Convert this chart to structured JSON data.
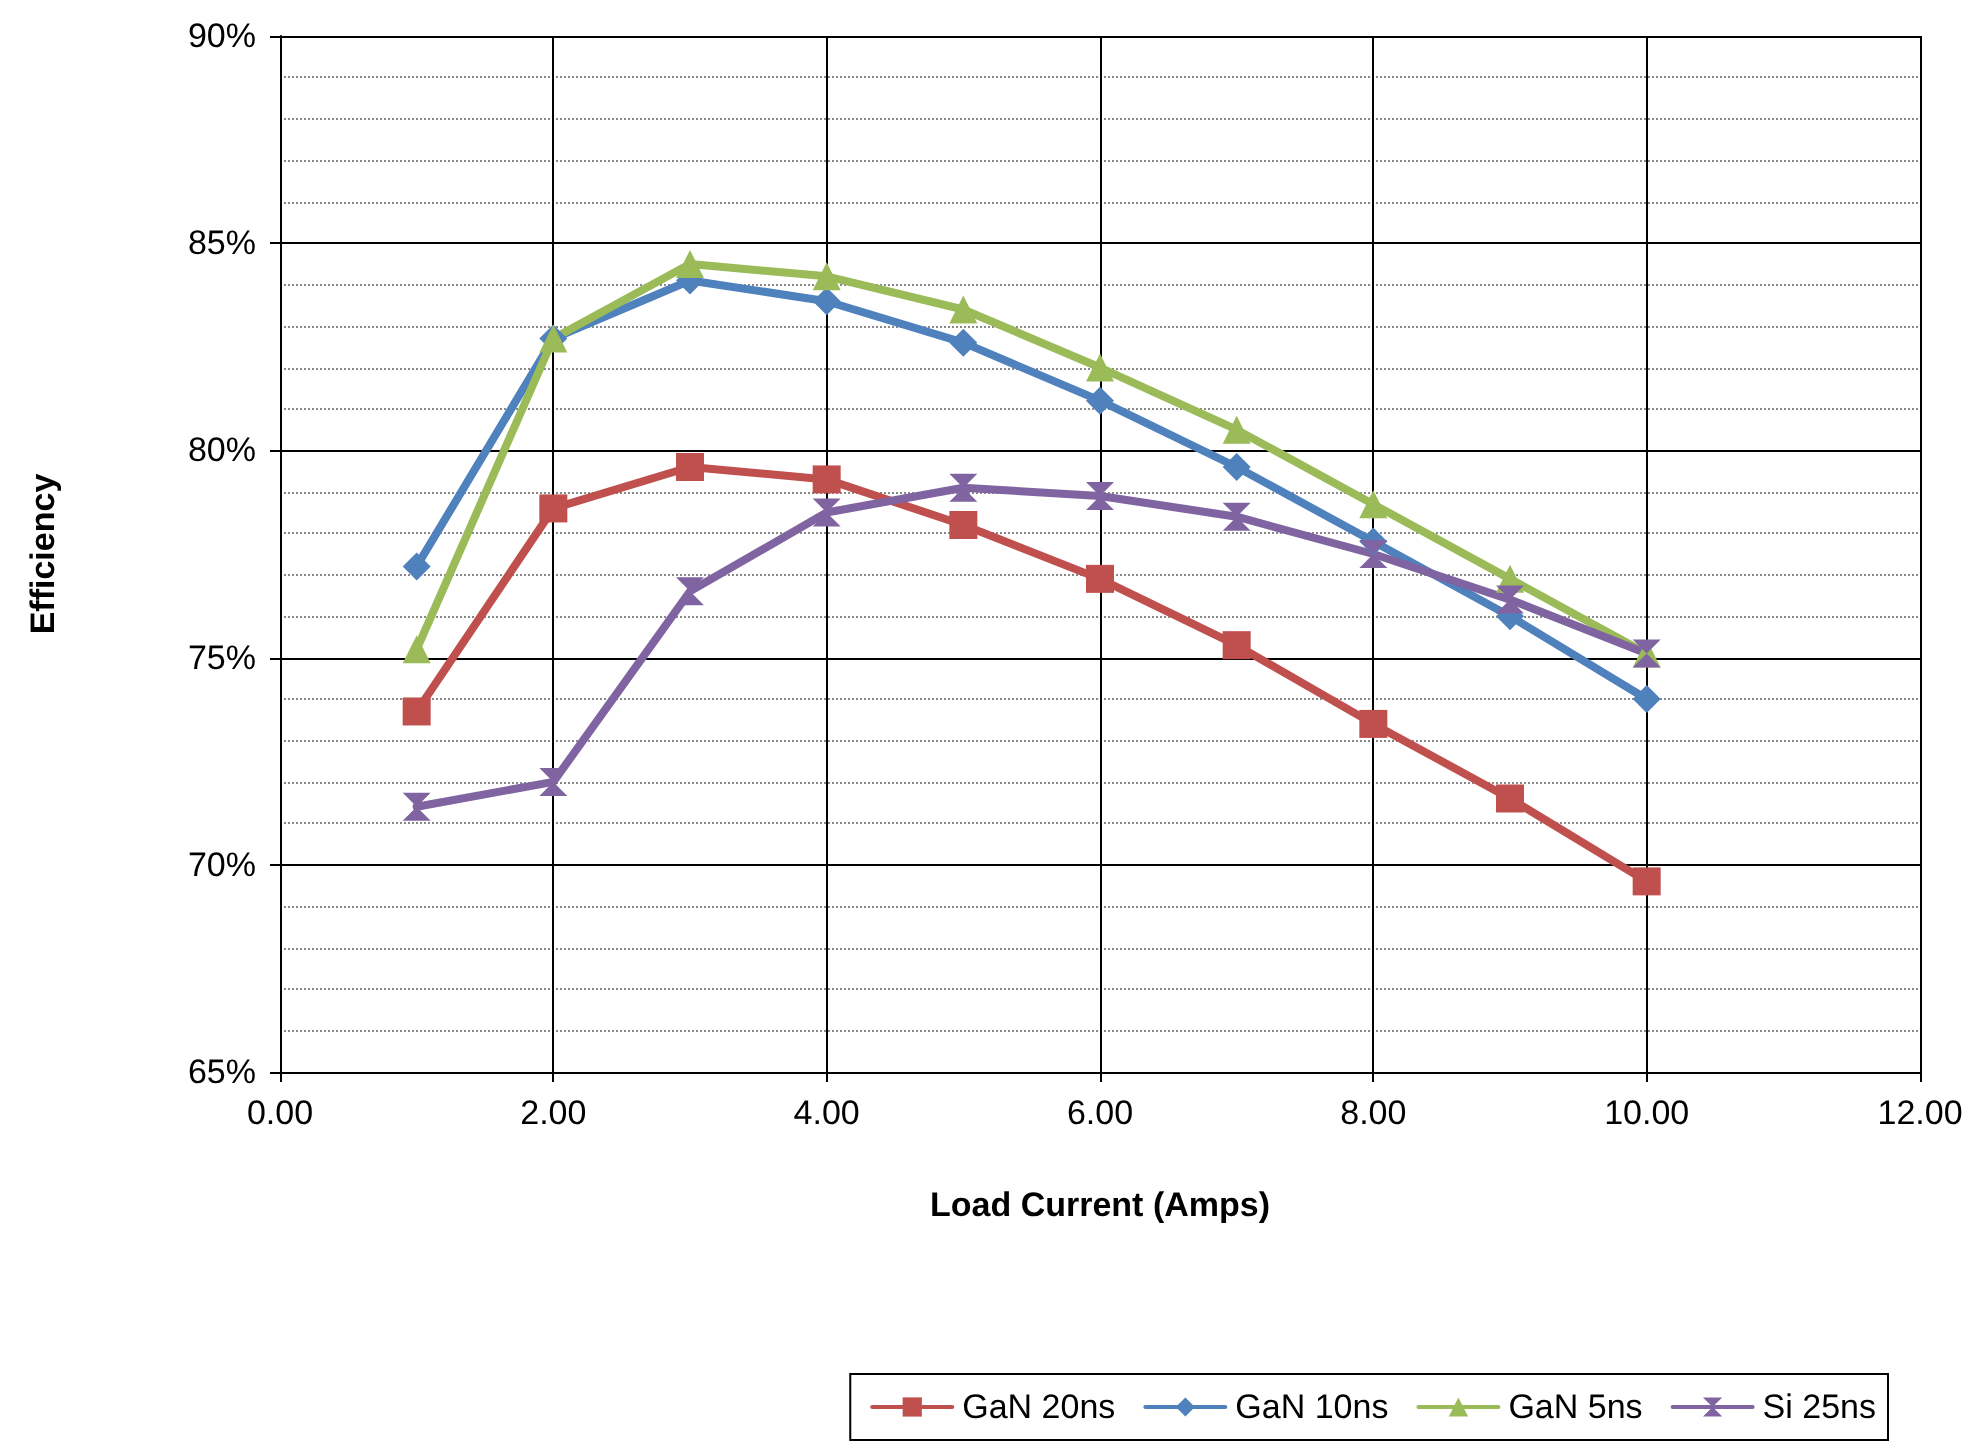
{
  "chart_data": {
    "type": "line",
    "xlabel": "Load Current (Amps)",
    "ylabel": "Efficiency",
    "xlim": [
      0,
      12
    ],
    "xticks": [
      {
        "value": 0,
        "label": "0.00"
      },
      {
        "value": 2,
        "label": "2.00"
      },
      {
        "value": 4,
        "label": "4.00"
      },
      {
        "value": 6,
        "label": "6.00"
      },
      {
        "value": 8,
        "label": "8.00"
      },
      {
        "value": 10,
        "label": "10.00"
      },
      {
        "value": 12,
        "label": "12.00"
      }
    ],
    "ylim": [
      65,
      90
    ],
    "yticks": [
      {
        "value": 65,
        "label": "65%"
      },
      {
        "value": 70,
        "label": "70%"
      },
      {
        "value": 75,
        "label": "75%"
      },
      {
        "value": 80,
        "label": "80%"
      },
      {
        "value": 85,
        "label": "85%"
      },
      {
        "value": 90,
        "label": "90%"
      }
    ],
    "x": [
      1,
      2,
      3,
      4,
      5,
      6,
      7,
      8,
      9,
      10
    ],
    "grid": true,
    "legend": "bottom right",
    "line_style": "solid",
    "series": [
      {
        "name": "GaN 20ns",
        "color": "#c0504d",
        "marker": "square",
        "values": [
          73.7,
          78.6,
          79.6,
          79.3,
          78.2,
          76.9,
          75.3,
          73.4,
          71.6,
          69.6
        ]
      },
      {
        "name": "GaN 10ns",
        "color": "#4f81bd",
        "marker": "diamond",
        "values": [
          77.2,
          82.7,
          84.1,
          83.6,
          82.6,
          81.2,
          79.6,
          77.8,
          76.0,
          74.0
        ]
      },
      {
        "name": "GaN 5ns",
        "color": "#9bbb59",
        "marker": "triangle",
        "values": [
          75.2,
          82.7,
          84.5,
          84.2,
          83.4,
          82.0,
          80.5,
          78.7,
          76.9,
          75.1
        ]
      },
      {
        "name": "Si 25ns",
        "color": "#8064a2",
        "marker": "cross",
        "values": [
          71.4,
          72.0,
          76.6,
          78.5,
          79.1,
          78.9,
          78.4,
          77.5,
          76.4,
          75.1
        ]
      }
    ]
  }
}
